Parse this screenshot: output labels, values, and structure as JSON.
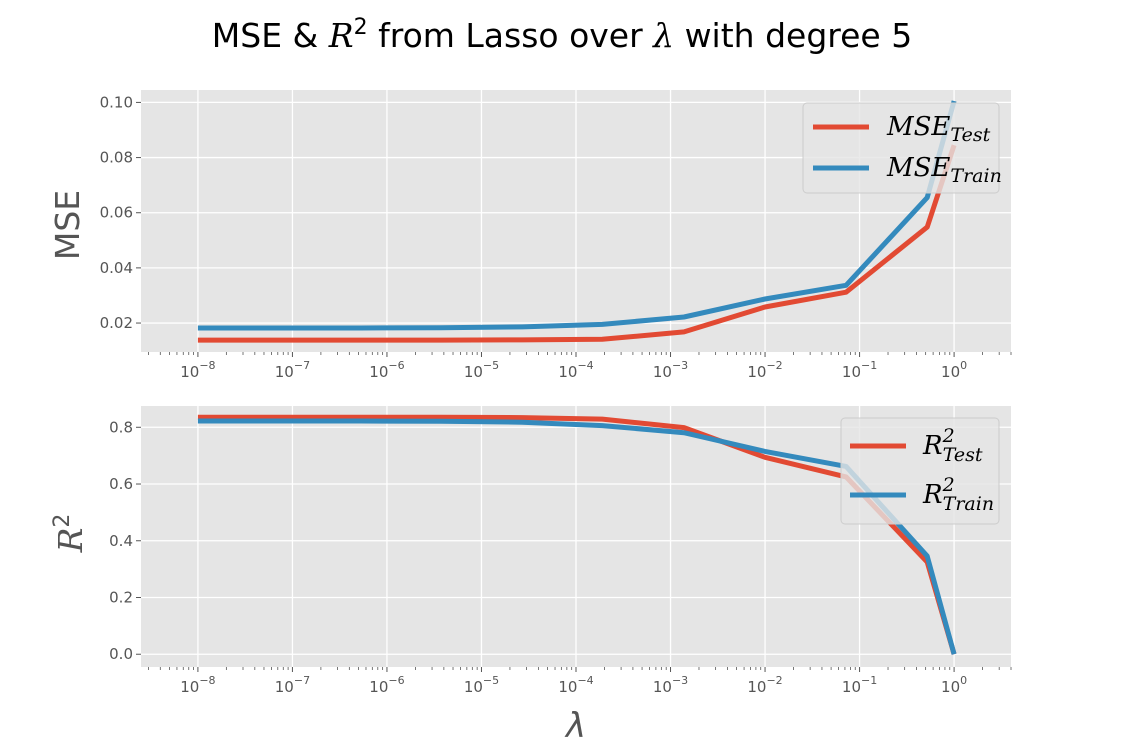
{
  "title": {
    "prefix": "MSE & ",
    "r": "R",
    "sup": "2",
    "middle": " from Lasso over ",
    "lambda": "λ",
    "suffix": " with degree 5"
  },
  "xlabel": "λ",
  "colors": {
    "test": "#E24A33",
    "train": "#348ABD",
    "panel_bg": "#E5E5E5",
    "grid": "#FFFFFF"
  },
  "chart_data": [
    {
      "type": "line",
      "ylabel": "MSE",
      "xscale": "log",
      "xlim": [
        2.5e-09,
        4.0
      ],
      "ylim": [
        0.0095,
        0.1045
      ],
      "yticks": [
        0.02,
        0.04,
        0.06,
        0.08,
        0.1
      ],
      "ytick_labels": [
        "0.02",
        "0.04",
        "0.06",
        "0.08",
        "0.10"
      ],
      "legend": "top-right",
      "grid": true,
      "x": [
        1e-08,
        7.2e-08,
        5.2e-07,
        3.7e-06,
        2.7e-05,
        0.00019,
        0.00139,
        0.01,
        0.072,
        0.52,
        1.0
      ],
      "series": [
        {
          "key": "test",
          "base": "MSE",
          "sub": "Test",
          "values": [
            0.0138,
            0.0138,
            0.0138,
            0.0138,
            0.0139,
            0.0141,
            0.0168,
            0.0258,
            0.0312,
            0.0548,
            0.0845
          ]
        },
        {
          "key": "train",
          "base": "MSE",
          "sub": "Train",
          "values": [
            0.0182,
            0.0182,
            0.0182,
            0.0183,
            0.0186,
            0.0195,
            0.0222,
            0.0287,
            0.0337,
            0.0655,
            0.1005
          ]
        }
      ]
    },
    {
      "type": "line",
      "ylabel_base": "R",
      "ylabel_sup": "2",
      "xscale": "log",
      "xlim": [
        2.5e-09,
        4.0
      ],
      "ylim": [
        -0.045,
        0.875
      ],
      "yticks": [
        0.0,
        0.2,
        0.4,
        0.6,
        0.8
      ],
      "ytick_labels": [
        "0.0",
        "0.2",
        "0.4",
        "0.6",
        "0.8"
      ],
      "legend": "top-right",
      "grid": true,
      "x": [
        1e-08,
        7.2e-08,
        5.2e-07,
        3.7e-06,
        2.7e-05,
        0.00019,
        0.00139,
        0.01,
        0.072,
        0.52,
        1.0
      ],
      "series": [
        {
          "key": "test",
          "base": "R",
          "sup": "2",
          "sub": "Test",
          "values": [
            0.835,
            0.835,
            0.835,
            0.835,
            0.834,
            0.829,
            0.799,
            0.694,
            0.625,
            0.325,
            0.0
          ]
        },
        {
          "key": "train",
          "base": "R",
          "sup": "2",
          "sub": "Train",
          "values": [
            0.822,
            0.822,
            0.822,
            0.821,
            0.818,
            0.806,
            0.781,
            0.715,
            0.662,
            0.346,
            0.0
          ]
        }
      ]
    }
  ],
  "xtick_labels": [
    {
      "base": "10",
      "exp": "−8"
    },
    {
      "base": "10",
      "exp": "−7"
    },
    {
      "base": "10",
      "exp": "−6"
    },
    {
      "base": "10",
      "exp": "−5"
    },
    {
      "base": "10",
      "exp": "−4"
    },
    {
      "base": "10",
      "exp": "−3"
    },
    {
      "base": "10",
      "exp": "−2"
    },
    {
      "base": "10",
      "exp": "−1"
    },
    {
      "base": "10",
      "exp": "0"
    }
  ]
}
